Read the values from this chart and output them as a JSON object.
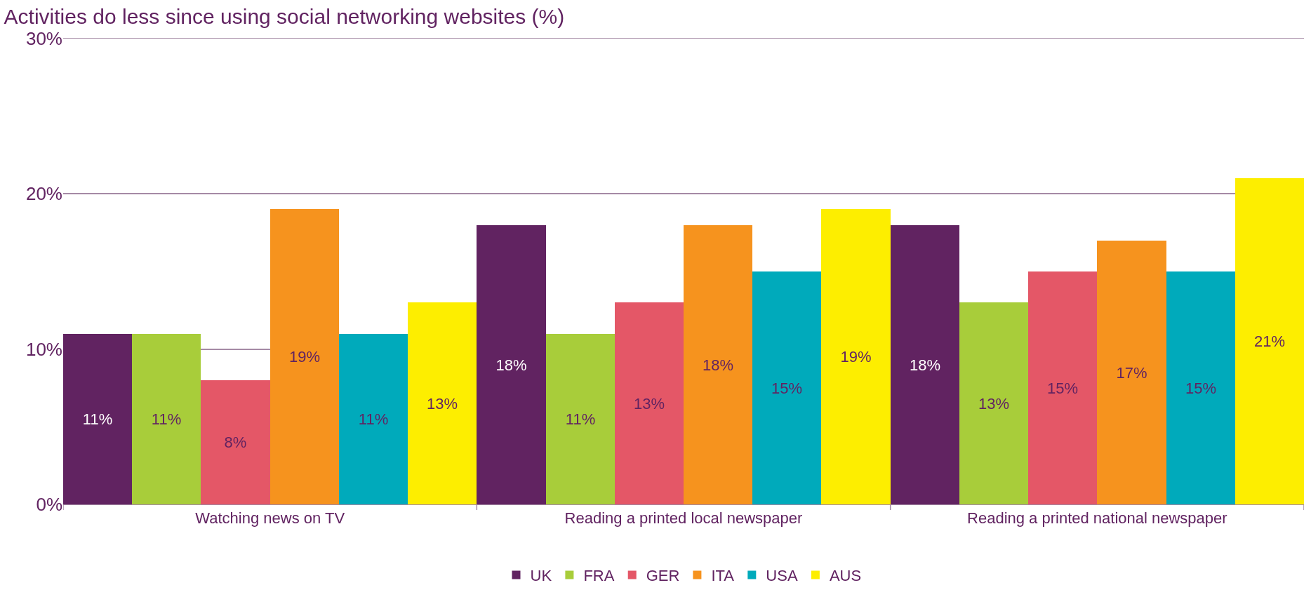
{
  "chart_data": {
    "type": "bar",
    "title": "Activities do less since using social networking websites (%)",
    "categories": [
      "Watching news on TV",
      "Reading a printed local newspaper",
      "Reading a printed national newspaper"
    ],
    "series": [
      {
        "name": "UK",
        "color": "#612361",
        "values": [
          11,
          18,
          18
        ],
        "value_labels": [
          "11%",
          "18%",
          "18%"
        ]
      },
      {
        "name": "FRA",
        "color": "#a8cd3a",
        "values": [
          11,
          11,
          13
        ],
        "value_labels": [
          "11%",
          "11%",
          "13%"
        ]
      },
      {
        "name": "GER",
        "color": "#e45767",
        "values": [
          8,
          13,
          15
        ],
        "value_labels": [
          "8%",
          "13%",
          "15%"
        ]
      },
      {
        "name": "ITA",
        "color": "#f6931e",
        "values": [
          19,
          18,
          17
        ],
        "value_labels": [
          "19%",
          "18%",
          "17%"
        ]
      },
      {
        "name": "USA",
        "color": "#00aabb",
        "values": [
          11,
          15,
          15
        ],
        "value_labels": [
          "11%",
          "15%",
          "15%"
        ]
      },
      {
        "name": "AUS",
        "color": "#fdee00",
        "values": [
          13,
          19,
          21
        ],
        "value_labels": [
          "13%",
          "19%",
          "21%"
        ]
      }
    ],
    "ylim": [
      0,
      30
    ],
    "yticks": [
      {
        "value": 0,
        "label": "0%"
      },
      {
        "value": 10,
        "label": "10%"
      },
      {
        "value": 20,
        "label": "20%"
      },
      {
        "value": 30,
        "label": "30%"
      }
    ],
    "grid": "y",
    "legend": "bottom"
  }
}
